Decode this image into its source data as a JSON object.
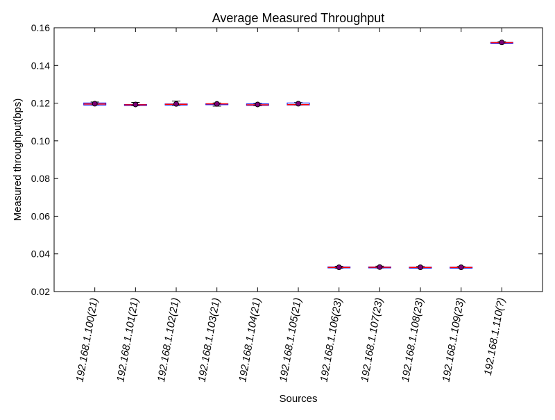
{
  "chart_data": {
    "type": "box",
    "title": "Average Measured Throughput",
    "xlabel": "Sources",
    "ylabel": "Measured throughput(bps)",
    "ylim": [
      0.02,
      0.16
    ],
    "yticks": [
      "0.02",
      "0.04",
      "0.06",
      "0.08",
      "0.10",
      "0.12",
      "0.14",
      "0.16"
    ],
    "grid": false,
    "categories": [
      "192.168.1.100(21)",
      "192.168.1.101(21)",
      "192.168.1.102(21)",
      "192.168.1.103(21)",
      "192.168.1.104(21)",
      "192.168.1.105(21)",
      "192.168.1.106(23)",
      "192.168.1.107(23)",
      "192.168.1.108(23)",
      "192.168.1.109(23)",
      "192.168.1.110(?)"
    ],
    "boxes": [
      {
        "min": 0.119,
        "q1": 0.119,
        "median": 0.1195,
        "q3": 0.1201,
        "max": 0.1206,
        "mean": 0.1197
      },
      {
        "min": 0.1186,
        "q1": 0.1188,
        "median": 0.1191,
        "q3": 0.1193,
        "max": 0.1204,
        "mean": 0.1193
      },
      {
        "min": 0.1188,
        "q1": 0.119,
        "median": 0.1194,
        "q3": 0.1196,
        "max": 0.1211,
        "mean": 0.1196
      },
      {
        "min": 0.1184,
        "q1": 0.1194,
        "median": 0.1196,
        "q3": 0.1197,
        "max": 0.1201,
        "mean": 0.1196
      },
      {
        "min": 0.1186,
        "q1": 0.1188,
        "median": 0.1191,
        "q3": 0.1196,
        "max": 0.1199,
        "mean": 0.1193
      },
      {
        "min": 0.119,
        "q1": 0.119,
        "median": 0.1192,
        "q3": 0.1201,
        "max": 0.1203,
        "mean": 0.1197
      },
      {
        "min": 0.0324,
        "q1": 0.0326,
        "median": 0.0328,
        "q3": 0.0331,
        "max": 0.0334,
        "mean": 0.0329
      },
      {
        "min": 0.0325,
        "q1": 0.0327,
        "median": 0.0329,
        "q3": 0.0331,
        "max": 0.0335,
        "mean": 0.033
      },
      {
        "min": 0.0325,
        "q1": 0.0327,
        "median": 0.0328,
        "q3": 0.033,
        "max": 0.0333,
        "mean": 0.0329
      },
      {
        "min": 0.0325,
        "q1": 0.0327,
        "median": 0.0328,
        "q3": 0.033,
        "max": 0.0333,
        "mean": 0.0329
      },
      {
        "min": 0.1518,
        "q1": 0.1519,
        "median": 0.1521,
        "q3": 0.1523,
        "max": 0.1526,
        "mean": 0.1522
      }
    ],
    "colors": {
      "box": "#0000ff",
      "median": "#ff0000",
      "whisker": "#0000ff",
      "mean_marker_fill": "#7b0078",
      "mean_marker_stroke": "#000000",
      "axis": "#000000"
    }
  }
}
